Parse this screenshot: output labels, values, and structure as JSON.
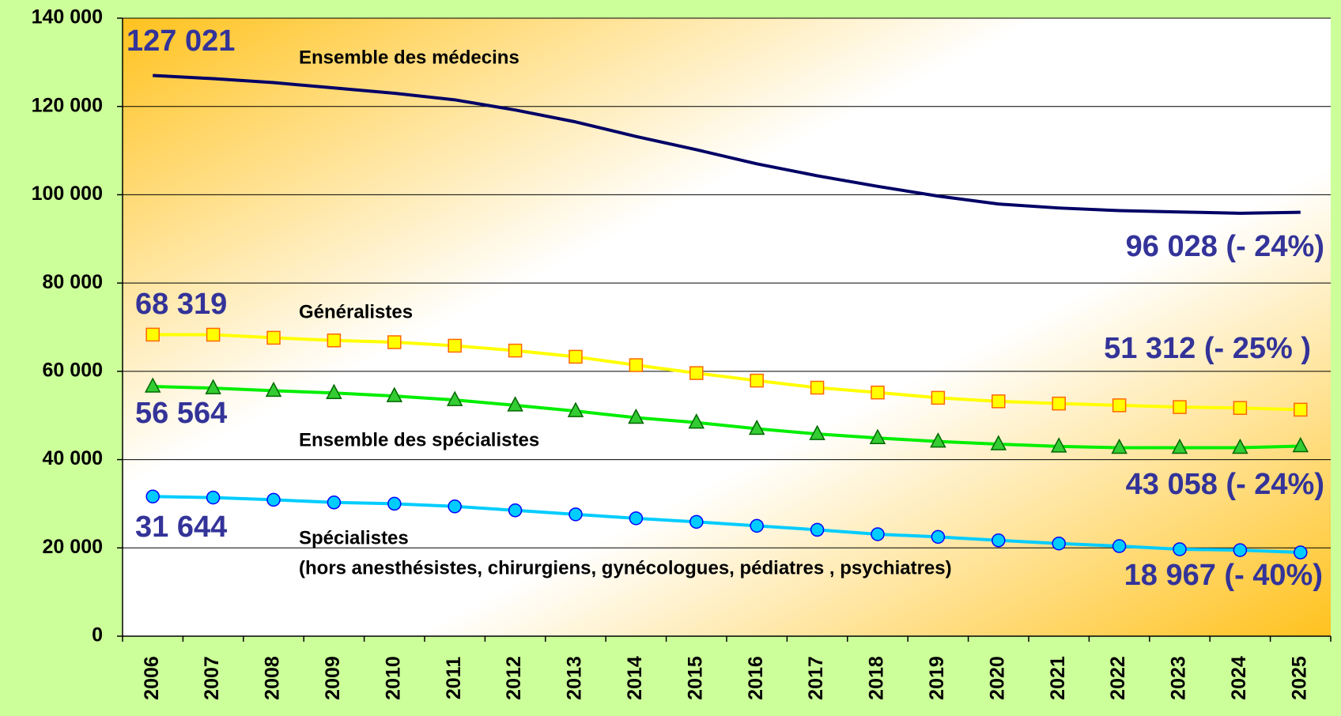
{
  "chart_data": {
    "type": "line",
    "categories": [
      "2006",
      "2007",
      "2008",
      "2009",
      "2010",
      "2011",
      "2012",
      "2013",
      "2014",
      "2015",
      "2016",
      "2017",
      "2018",
      "2019",
      "2020",
      "2021",
      "2022",
      "2023",
      "2024",
      "2025"
    ],
    "ylim": [
      0,
      140000
    ],
    "yticks": [
      0,
      {
        "value": 20000,
        "label": "20 000"
      },
      {
        "value": 40000,
        "label": "40 000"
      },
      {
        "value": 60000,
        "label": "60 000"
      },
      {
        "value": 80000,
        "label": "80 000"
      },
      {
        "value": 100000,
        "label": "100 000"
      },
      {
        "value": 120000,
        "label": "120 000"
      },
      {
        "value": 140000,
        "label": "140 000"
      }
    ],
    "grid": true,
    "series": [
      {
        "name": "Ensemble des médecins",
        "color": "#000066",
        "marker": null,
        "values": [
          127021,
          126300,
          125400,
          124200,
          123000,
          121500,
          119200,
          116500,
          113200,
          110200,
          107000,
          104300,
          101900,
          99700,
          97900,
          97000,
          96400,
          96100,
          95800,
          96028
        ],
        "value_labels": [
          "127 021",
          null,
          null,
          null,
          null,
          null,
          null,
          null,
          null,
          null,
          null,
          null,
          null,
          null,
          null,
          null,
          null,
          null,
          null,
          "96 028 (- 24%)"
        ]
      },
      {
        "name": "Généralistes",
        "color": "#ffff00",
        "marker": "square",
        "marker_fill": "#ffff00",
        "marker_stroke": "#ff6600",
        "values": [
          68319,
          68300,
          67600,
          67000,
          66600,
          65800,
          64700,
          63300,
          61400,
          59600,
          57900,
          56300,
          55200,
          54000,
          53200,
          52700,
          52300,
          51900,
          51700,
          51312
        ],
        "value_labels": [
          "68 319",
          null,
          null,
          null,
          null,
          null,
          null,
          null,
          null,
          null,
          null,
          null,
          null,
          null,
          null,
          null,
          null,
          null,
          null,
          "51 312 (- 25% )"
        ]
      },
      {
        "name": "Ensemble des spécialistes",
        "color": "#00ee00",
        "marker": "triangle",
        "marker_fill": "#33cc33",
        "marker_stroke": "#006600",
        "values": [
          56564,
          56200,
          55600,
          55100,
          54400,
          53500,
          52300,
          51000,
          49500,
          48400,
          47000,
          45800,
          44900,
          44100,
          43500,
          43000,
          42700,
          42700,
          42700,
          43058
        ],
        "value_labels": [
          "56 564",
          null,
          null,
          null,
          null,
          null,
          null,
          null,
          null,
          null,
          null,
          null,
          null,
          null,
          null,
          null,
          null,
          null,
          null,
          "43 058 (- 24%)"
        ]
      },
      {
        "name": "Spécialistes",
        "note": "(hors anesthésistes, chirurgiens, gynécologues, pédiatres , psychiatres)",
        "color": "#00ccff",
        "marker": "circle",
        "marker_fill": "#00ccff",
        "marker_stroke": "#0000ff",
        "values": [
          31644,
          31400,
          30900,
          30300,
          30000,
          29400,
          28500,
          27600,
          26700,
          25900,
          25000,
          24100,
          23100,
          22500,
          21700,
          21000,
          20400,
          19700,
          19500,
          18967
        ],
        "value_labels": [
          "31 644",
          null,
          null,
          null,
          null,
          null,
          null,
          null,
          null,
          null,
          null,
          null,
          null,
          null,
          null,
          null,
          null,
          null,
          null,
          "18 967 (- 40%)"
        ]
      }
    ]
  }
}
